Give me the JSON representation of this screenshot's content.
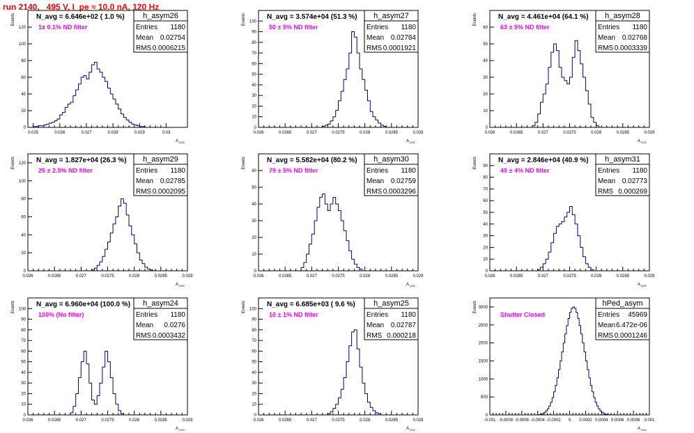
{
  "header": "run 2140,   495 V, I_pe ≈ 10.0 nA, 120 Hz",
  "common": {
    "ylabel": "Events",
    "xlabel_main": "A",
    "xlabel_sub": "LED",
    "stats_labels": [
      "Entries",
      "Mean",
      "RMS"
    ]
  },
  "colors": {
    "hist": "#000080",
    "header": "#ff0000",
    "annotation": "#ff00ff"
  },
  "chart_data": [
    {
      "type": "histogram",
      "name": "h_asym26",
      "title": "N_avg = 6.646e+02 ( 1.0 %)",
      "annotation": "1± 0.1% ND filter",
      "stats": {
        "entries": "1180",
        "mean": "0.02754",
        "rms": "0.0006215"
      },
      "xlim": [
        0.0248,
        0.0308
      ],
      "ylim": [
        0,
        140
      ],
      "xticks": [
        0.025,
        0.026,
        0.027,
        0.028,
        0.029,
        0.03
      ],
      "xtick_labels": [
        "0.025",
        "0.026",
        "0.027",
        "0.028",
        "0.029",
        "0.03"
      ],
      "yticks": [
        0,
        20,
        40,
        60,
        80,
        100,
        120
      ],
      "bins": {
        "start": 0.025,
        "width": 0.0001,
        "counts": [
          1,
          1,
          2,
          2,
          3,
          4,
          5,
          6,
          8,
          10,
          15,
          18,
          24,
          28,
          30,
          38,
          45,
          52,
          60,
          62,
          58,
          66,
          75,
          78,
          70,
          66,
          60,
          55,
          47,
          40,
          34,
          28,
          22,
          16,
          12,
          9,
          6,
          4,
          3,
          2,
          1,
          1
        ]
      }
    },
    {
      "type": "histogram",
      "name": "h_asym27",
      "title": "N_avg = 3.574e+04 (51.3 %)",
      "annotation": "50 ± 5% ND filter",
      "stats": {
        "entries": "1180",
        "mean": "0.02784",
        "rms": "0.0001921"
      },
      "xlim": [
        0.026,
        0.029
      ],
      "ylim": [
        0,
        110
      ],
      "xticks": [
        0.026,
        0.0265,
        0.027,
        0.0275,
        0.028,
        0.0285,
        0.029
      ],
      "xtick_labels": [
        "0.026",
        "0.0265",
        "0.027",
        "0.0275",
        "0.028",
        "0.0285",
        "0.029"
      ],
      "yticks": [
        0,
        10,
        20,
        30,
        40,
        50,
        60,
        70,
        80,
        90,
        100
      ],
      "bins": {
        "start": 0.0272,
        "width": 5e-05,
        "counts": [
          1,
          2,
          3,
          6,
          10,
          16,
          25,
          34,
          45,
          55,
          70,
          90,
          85,
          70,
          55,
          45,
          35,
          25,
          15,
          10,
          7,
          4,
          2,
          1
        ]
      }
    },
    {
      "type": "histogram",
      "name": "h_asym28",
      "title": "N_avg = 4.461e+04 (64.1 %)",
      "annotation": "63 ± 5% ND filter",
      "stats": {
        "entries": "1180",
        "mean": "0.02768",
        "rms": "0.0003339"
      },
      "xlim": [
        0.026,
        0.029
      ],
      "ylim": [
        0,
        70
      ],
      "xticks": [
        0.026,
        0.0265,
        0.027,
        0.0275,
        0.028,
        0.0285,
        0.029
      ],
      "xtick_labels": [
        "0.026",
        "0.0265",
        "0.027",
        "0.0275",
        "0.028",
        "0.0285",
        "0.029"
      ],
      "yticks": [
        0,
        10,
        20,
        30,
        40,
        50,
        60
      ],
      "bins": {
        "start": 0.0268,
        "width": 5e-05,
        "counts": [
          1,
          3,
          8,
          15,
          20,
          26,
          36,
          45,
          50,
          46,
          36,
          30,
          28,
          26,
          30,
          42,
          52,
          46,
          38,
          30,
          22,
          14,
          6,
          3,
          1
        ]
      }
    },
    {
      "type": "histogram",
      "name": "h_asym29",
      "title": "N_avg = 1.827e+04 (26.3 %)",
      "annotation": "25 ± 2.5% ND filter",
      "stats": {
        "entries": "1180",
        "mean": "0.02785",
        "rms": "0.0002095"
      },
      "xlim": [
        0.026,
        0.029
      ],
      "ylim": [
        0,
        130
      ],
      "xticks": [
        0.026,
        0.0265,
        0.027,
        0.0275,
        0.028,
        0.0285,
        0.029
      ],
      "xtick_labels": [
        "0.026",
        "0.0265",
        "0.027",
        "0.0275",
        "0.028",
        "0.0285",
        "0.029"
      ],
      "yticks": [
        0,
        20,
        40,
        60,
        80,
        100,
        120
      ],
      "bins": {
        "start": 0.0272,
        "width": 5e-05,
        "counts": [
          1,
          3,
          6,
          10,
          16,
          24,
          32,
          42,
          52,
          60,
          72,
          80,
          75,
          62,
          50,
          40,
          30,
          20,
          12,
          8,
          4,
          2,
          1
        ]
      }
    },
    {
      "type": "histogram",
      "name": "h_asym30",
      "title": "N_avg = 5.582e+04 (80.2 %)",
      "annotation": "79 ± 5% ND filter",
      "stats": {
        "entries": "1180",
        "mean": "0.02759",
        "rms": "0.0003296"
      },
      "xlim": [
        0.026,
        0.029
      ],
      "ylim": [
        0,
        70
      ],
      "xticks": [
        0.026,
        0.0265,
        0.027,
        0.0275,
        0.028,
        0.0285,
        0.029
      ],
      "xtick_labels": [
        "0.026",
        "0.0265",
        "0.027",
        "0.0275",
        "0.028",
        "0.0285",
        "0.029"
      ],
      "yticks": [
        0,
        10,
        20,
        30,
        40,
        50,
        60
      ],
      "bins": {
        "start": 0.0268,
        "width": 5e-05,
        "counts": [
          2,
          5,
          10,
          16,
          22,
          30,
          38,
          44,
          46,
          40,
          36,
          40,
          44,
          40,
          36,
          30,
          24,
          18,
          12,
          7,
          4,
          2,
          1
        ]
      }
    },
    {
      "type": "histogram",
      "name": "h_asym31",
      "title": "N_avg = 2.846e+04 (40.9 %)",
      "annotation": "40 ± 4% ND filter",
      "stats": {
        "entries": "1180",
        "mean": "0.02773",
        "rms": "0.000269"
      },
      "xlim": [
        0.026,
        0.029
      ],
      "ylim": [
        0,
        100
      ],
      "xticks": [
        0.026,
        0.0265,
        0.027,
        0.0275,
        0.028,
        0.0285,
        0.029
      ],
      "xtick_labels": [
        "0.026",
        "0.0265",
        "0.027",
        "0.0275",
        "0.028",
        "0.0285",
        "0.029"
      ],
      "yticks": [
        0,
        10,
        20,
        30,
        40,
        50,
        60,
        70,
        80,
        90
      ],
      "bins": {
        "start": 0.0269,
        "width": 5e-05,
        "counts": [
          1,
          3,
          6,
          10,
          16,
          24,
          32,
          38,
          40,
          42,
          46,
          50,
          55,
          48,
          40,
          30,
          20,
          12,
          6,
          3,
          1
        ]
      }
    },
    {
      "type": "histogram",
      "name": "h_asym24",
      "title": "N_avg = 6.960e+04 (100.0 %)",
      "annotation": "100% (No filter)",
      "stats": {
        "entries": "1180",
        "mean": "0.0276",
        "rms": "0.0003432"
      },
      "xlim": [
        0.026,
        0.029
      ],
      "ylim": [
        0,
        110
      ],
      "xticks": [
        0.026,
        0.0265,
        0.027,
        0.0275,
        0.028,
        0.0285,
        0.029
      ],
      "xtick_labels": [
        "0.026",
        "0.0265",
        "0.027",
        "0.0275",
        "0.028",
        "0.0285",
        "0.029"
      ],
      "yticks": [
        0,
        10,
        20,
        30,
        40,
        50,
        60,
        70,
        80,
        90,
        100
      ],
      "bins": {
        "start": 0.0268,
        "width": 5e-05,
        "counts": [
          2,
          8,
          20,
          35,
          50,
          60,
          48,
          30,
          14,
          10,
          18,
          30,
          45,
          60,
          50,
          35,
          20,
          10,
          4,
          1
        ]
      }
    },
    {
      "type": "histogram",
      "name": "h_asym25",
      "title": "N_avg = 6.685e+03 ( 9.6 %)",
      "annotation": "10 ± 1% ND filter",
      "stats": {
        "entries": "1180",
        "mean": "0.02787",
        "rms": "0.000218"
      },
      "xlim": [
        0.026,
        0.029
      ],
      "ylim": [
        0,
        110
      ],
      "xticks": [
        0.026,
        0.0265,
        0.027,
        0.0275,
        0.028,
        0.0285,
        0.029
      ],
      "xtick_labels": [
        "0.026",
        "0.0265",
        "0.027",
        "0.0275",
        "0.028",
        "0.0285",
        "0.029"
      ],
      "yticks": [
        0,
        10,
        20,
        30,
        40,
        50,
        60,
        70,
        80,
        90,
        100
      ],
      "bins": {
        "start": 0.0273,
        "width": 5e-05,
        "counts": [
          1,
          3,
          6,
          10,
          16,
          24,
          35,
          50,
          65,
          78,
          80,
          62,
          45,
          30,
          20,
          12,
          7,
          4,
          2,
          1
        ]
      }
    },
    {
      "type": "histogram",
      "name": "hPed_asym",
      "title": "",
      "annotation": "Shutter Closed",
      "stats": {
        "entries": "45969",
        "mean": "6.472e-06",
        "rms": "0.0001246"
      },
      "xlim": [
        -0.001,
        0.001
      ],
      "ylim": [
        0,
        3250
      ],
      "xticks": [
        -0.001,
        -0.0008,
        -0.0006,
        -0.0004,
        -0.0002,
        0,
        0.0002,
        0.0004,
        0.0006,
        0.0008,
        0.001
      ],
      "xtick_labels": [
        "-0.001",
        "-0.0008",
        "-0.0006",
        "-0.0004",
        "-0.0002",
        "0",
        "0.0002",
        "0.0004",
        "0.0006",
        "0.0008",
        "0.001"
      ],
      "yticks": [
        0,
        500,
        1000,
        1500,
        2000,
        2500,
        3000
      ],
      "bins": {
        "start": -0.0004,
        "width": 2e-05,
        "counts": [
          5,
          10,
          20,
          40,
          70,
          110,
          170,
          250,
          350,
          480,
          640,
          820,
          1030,
          1260,
          1500,
          1750,
          2000,
          2250,
          2480,
          2680,
          2850,
          2960,
          3000,
          2960,
          2850,
          2680,
          2480,
          2250,
          2000,
          1750,
          1500,
          1260,
          1030,
          820,
          640,
          480,
          350,
          250,
          170,
          110,
          70,
          40,
          20,
          10,
          5,
          3
        ]
      }
    }
  ]
}
